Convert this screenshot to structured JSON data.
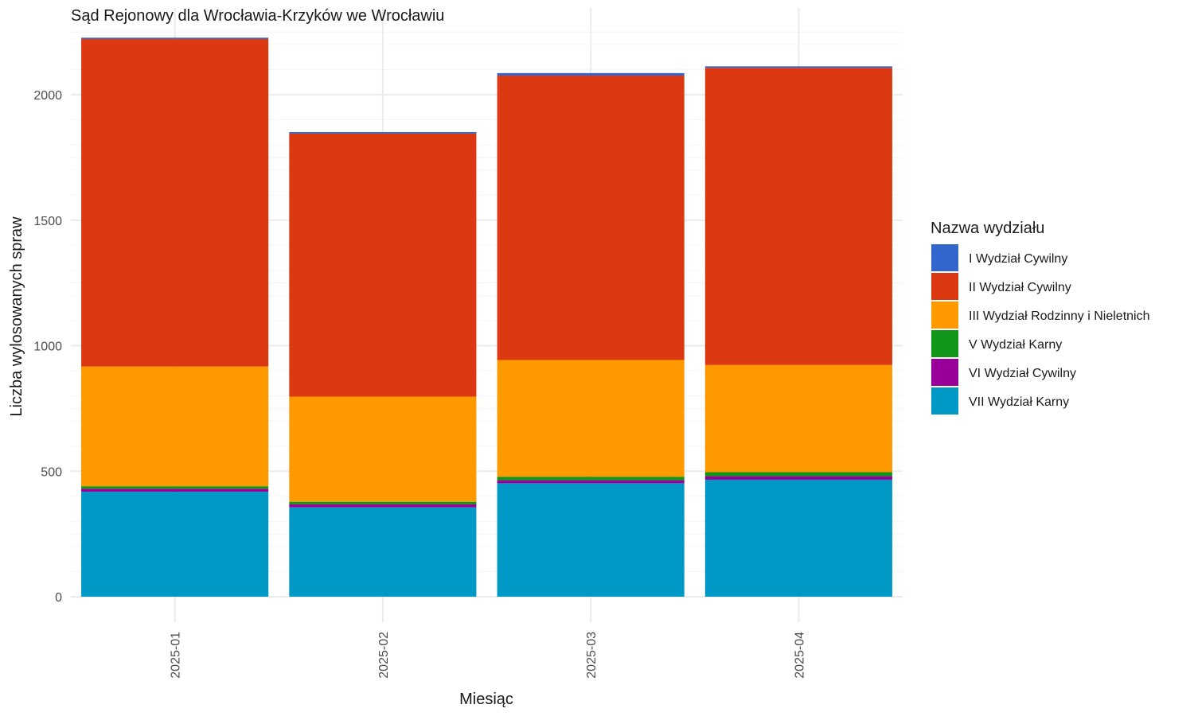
{
  "chart_data": {
    "type": "bar",
    "stacked": true,
    "title": "Sąd Rejonowy dla Wrocławia-Krzyków we Wrocławiu",
    "xlabel": "Miesiąc",
    "ylabel": "Liczba wylosowanych spraw",
    "ylim": [
      0,
      2300
    ],
    "yticks": [
      0,
      500,
      1000,
      1500,
      2000
    ],
    "grid": true,
    "legend_title": "Nazwa wydziału",
    "legend_position": "right",
    "categories": [
      "2025-01",
      "2025-02",
      "2025-03",
      "2025-04"
    ],
    "series": [
      {
        "name": "VII Wydział Karny",
        "color": "#0099C6",
        "values": [
          418,
          356,
          452,
          466
        ]
      },
      {
        "name": "VI Wydział Cywilny",
        "color": "#990099",
        "values": [
          12,
          12,
          12,
          14
        ]
      },
      {
        "name": "V Wydział Karny",
        "color": "#109618",
        "values": [
          10,
          10,
          14,
          16
        ]
      },
      {
        "name": "III Wydział Rodzinny i Nieletnich",
        "color": "#FF9900",
        "values": [
          477,
          419,
          465,
          427
        ]
      },
      {
        "name": "II Wydział Cywilny",
        "color": "#DC3912",
        "values": [
          1305,
          1048,
          1133,
          1184
        ]
      },
      {
        "name": "I Wydział Cywilny",
        "color": "#3366CC",
        "values": [
          5,
          6,
          10,
          6
        ]
      }
    ],
    "legend_order": [
      "I Wydział Cywilny",
      "II Wydział Cywilny",
      "III Wydział Rodzinny i Nieletnich",
      "V Wydział Karny",
      "VI Wydział Cywilny",
      "VII Wydział Karny"
    ]
  }
}
